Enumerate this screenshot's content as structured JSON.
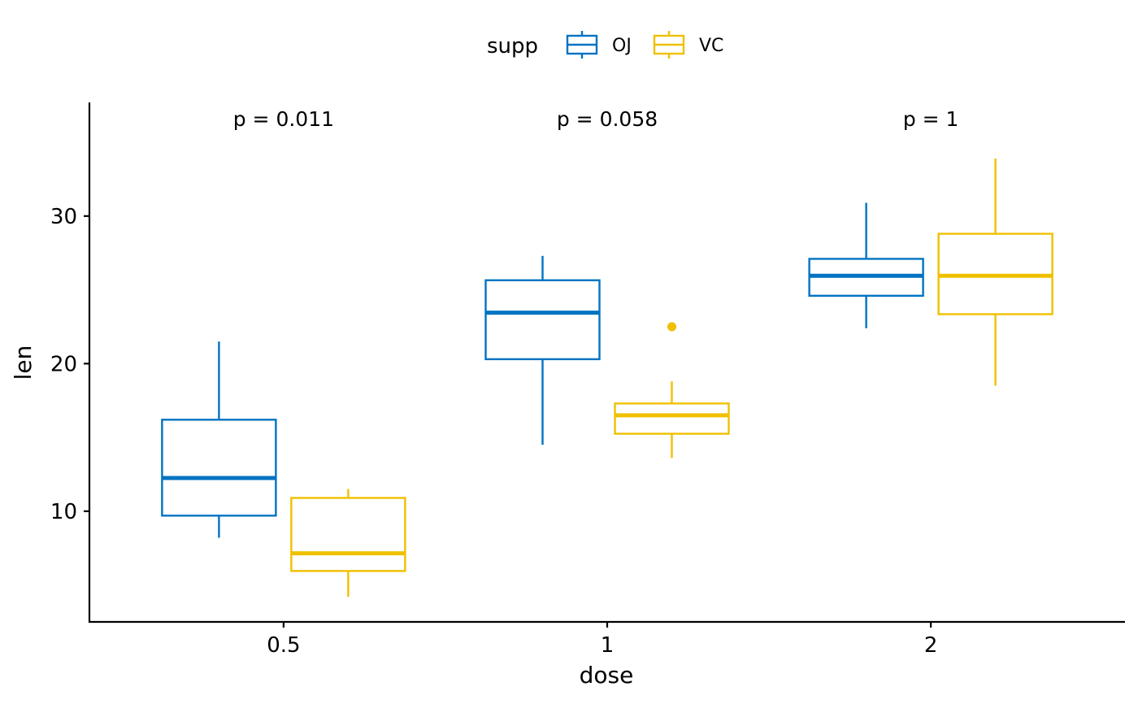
{
  "colors": {
    "OJ": "#0073C2",
    "VC": "#EFC000",
    "axis": "#000000"
  },
  "legend": {
    "title": "supp",
    "items": [
      {
        "label": "OJ",
        "color": "#0073C2"
      },
      {
        "label": "VC",
        "color": "#EFC000"
      }
    ],
    "placement": "top"
  },
  "chart_data": {
    "type": "boxplot",
    "xlabel": "dose",
    "ylabel": "len",
    "categories": [
      "0.5",
      "1",
      "2"
    ],
    "ylim": [
      2.5,
      37.7
    ],
    "yticks": [
      10,
      20,
      30
    ],
    "grid": false,
    "series": [
      {
        "name": "OJ",
        "color": "#0073C2",
        "boxes": [
          {
            "category": "0.5",
            "lower_whisker": 8.2,
            "q1": 9.7,
            "median": 12.25,
            "q3": 16.2,
            "upper_whisker": 21.5,
            "outliers": []
          },
          {
            "category": "1",
            "lower_whisker": 14.5,
            "q1": 20.3,
            "median": 23.45,
            "q3": 25.65,
            "upper_whisker": 27.3,
            "outliers": []
          },
          {
            "category": "2",
            "lower_whisker": 22.4,
            "q1": 24.6,
            "median": 25.95,
            "q3": 27.1,
            "upper_whisker": 30.9,
            "outliers": []
          }
        ]
      },
      {
        "name": "VC",
        "color": "#EFC000",
        "boxes": [
          {
            "category": "0.5",
            "lower_whisker": 4.2,
            "q1": 5.95,
            "median": 7.15,
            "q3": 10.9,
            "upper_whisker": 11.5,
            "outliers": []
          },
          {
            "category": "1",
            "lower_whisker": 13.6,
            "q1": 15.25,
            "median": 16.5,
            "q3": 17.3,
            "upper_whisker": 18.8,
            "outliers": [
              22.5
            ]
          },
          {
            "category": "2",
            "lower_whisker": 18.5,
            "q1": 23.35,
            "median": 25.95,
            "q3": 28.8,
            "upper_whisker": 33.9,
            "outliers": []
          }
        ]
      }
    ],
    "annotations": [
      {
        "category": "0.5",
        "text": "p = 0.011"
      },
      {
        "category": "1",
        "text": "p = 0.058"
      },
      {
        "category": "2",
        "text": "p = 1"
      }
    ]
  }
}
